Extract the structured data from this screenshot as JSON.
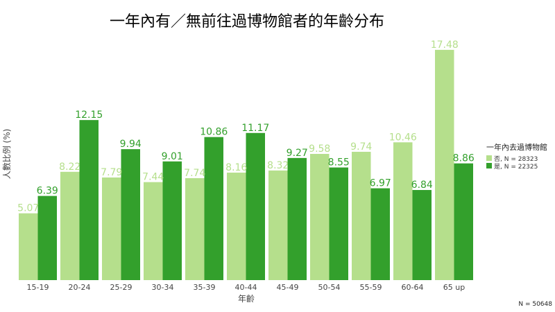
{
  "chart_data": {
    "type": "bar",
    "title": "一年內有／無前往過博物館者的年齡分布",
    "xlabel": "年齡",
    "ylabel": "人數比例 (%)",
    "categories": [
      "15-19",
      "20-24",
      "25-29",
      "30-34",
      "35-39",
      "40-44",
      "45-49",
      "50-54",
      "55-59",
      "60-64",
      "65 up"
    ],
    "ylim": [
      0,
      20
    ],
    "grid": false,
    "legend": {
      "title": "一年內去過博物館",
      "placement": "right"
    },
    "series": [
      {
        "name": "否, N =  28323",
        "color": "#b5df8c",
        "values": [
          5.07,
          8.22,
          7.79,
          7.44,
          7.74,
          8.16,
          8.32,
          9.58,
          9.74,
          10.46,
          17.48
        ],
        "labels": [
          "5.07",
          "8.22",
          "7.79",
          "7.44",
          "7.74",
          "8.16",
          "8.32",
          "9.58",
          "9.74",
          "10.46",
          "17.48"
        ]
      },
      {
        "name": "是, N =  22325",
        "color": "#33a02c",
        "values": [
          6.39,
          12.15,
          9.94,
          9.01,
          10.86,
          11.17,
          9.27,
          8.55,
          6.97,
          6.84,
          8.86
        ],
        "labels": [
          "6.39",
          "12.15",
          "9.94",
          "9.01",
          "10.86",
          "11.17",
          "9.27",
          "8.55",
          "6.97",
          "6.84",
          "8.86"
        ]
      }
    ],
    "footnote": "N =  50648"
  }
}
